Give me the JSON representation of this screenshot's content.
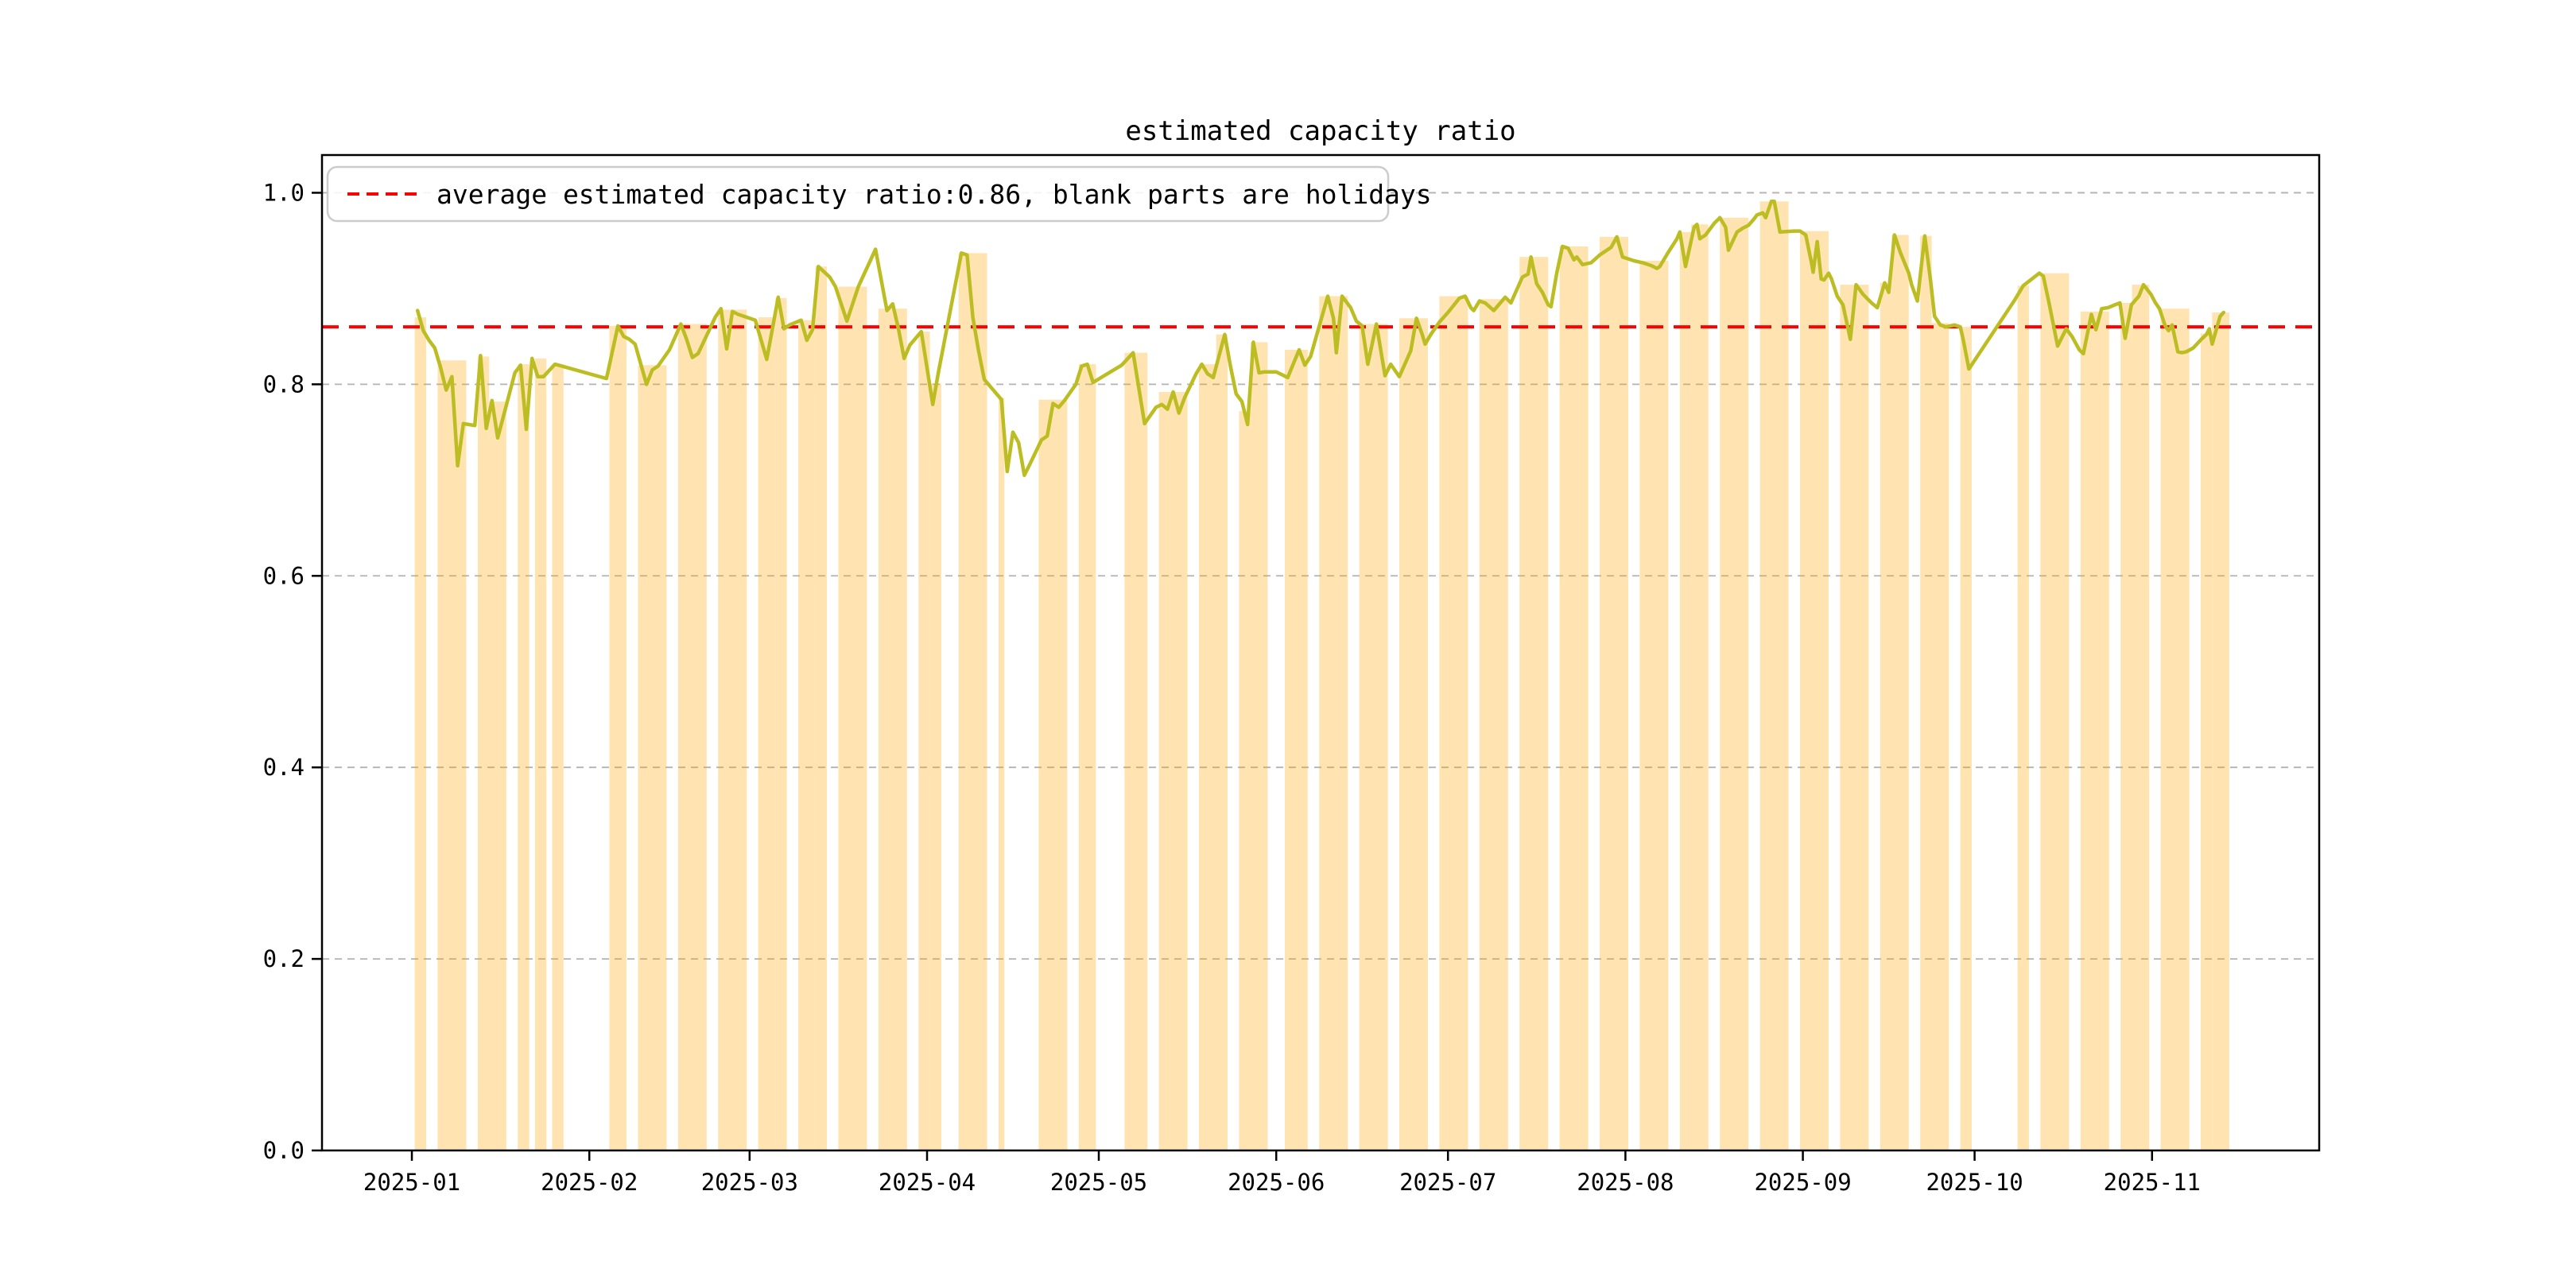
{
  "title": "estimated capacity ratio",
  "legend": {
    "label": "average estimated capacity ratio:0.86, blank parts are holidays"
  },
  "colors": {
    "bar_fill": "#FFA500",
    "bar_opacity": 0.3,
    "line": "#bcbd22",
    "average_line": "#ff0000",
    "grid": "#b3b3b3",
    "axis": "#000000",
    "legend_border": "#cccccc",
    "background": "#ffffff"
  },
  "chart_data": {
    "type": "line",
    "title": "estimated capacity ratio",
    "xlabel": "",
    "ylabel": "",
    "x_unit": "day index, t=1 is 2025-01-01",
    "xlim": [
      -14.7,
      334.2
    ],
    "ylim": [
      0,
      1.0394
    ],
    "grid": "dashed horizontal at each y tick",
    "legend_position": "upper left",
    "average_value": 0.86,
    "y_ticks": [
      {
        "v": 0.0,
        "label": "0.0"
      },
      {
        "v": 0.2,
        "label": "0.2"
      },
      {
        "v": 0.4,
        "label": "0.4"
      },
      {
        "v": 0.6,
        "label": "0.6"
      },
      {
        "v": 0.8,
        "label": "0.8"
      },
      {
        "v": 1.0,
        "label": "1.0"
      }
    ],
    "x_ticks": [
      {
        "t": 1,
        "label": "2025-01"
      },
      {
        "t": 32,
        "label": "2025-02"
      },
      {
        "t": 60,
        "label": "2025-03"
      },
      {
        "t": 91,
        "label": "2025-04"
      },
      {
        "t": 121,
        "label": "2025-05"
      },
      {
        "t": 152,
        "label": "2025-06"
      },
      {
        "t": 182,
        "label": "2025-07"
      },
      {
        "t": 213,
        "label": "2025-08"
      },
      {
        "t": 244,
        "label": "2025-09"
      },
      {
        "t": 274,
        "label": "2025-10"
      },
      {
        "t": 305,
        "label": "2025-11"
      }
    ],
    "line_points": [
      [
        2,
        0.877
      ],
      [
        3,
        0.856
      ],
      [
        4,
        0.846
      ],
      [
        5,
        0.838
      ],
      [
        6,
        0.818
      ],
      [
        7,
        0.794
      ],
      [
        8,
        0.808
      ],
      [
        9,
        0.715
      ],
      [
        10,
        0.759
      ],
      [
        11,
        0.758
      ],
      [
        12,
        0.757
      ],
      [
        13,
        0.83
      ],
      [
        14,
        0.754
      ],
      [
        15,
        0.783
      ],
      [
        16,
        0.744
      ],
      [
        19,
        0.812
      ],
      [
        20,
        0.82
      ],
      [
        21,
        0.753
      ],
      [
        22,
        0.827
      ],
      [
        23,
        0.808
      ],
      [
        24,
        0.808
      ],
      [
        26,
        0.821
      ],
      [
        35,
        0.806
      ],
      [
        37,
        0.861
      ],
      [
        38,
        0.85
      ],
      [
        39,
        0.847
      ],
      [
        40,
        0.842
      ],
      [
        42,
        0.8
      ],
      [
        43,
        0.815
      ],
      [
        44,
        0.819
      ],
      [
        46,
        0.836
      ],
      [
        48,
        0.863
      ],
      [
        49,
        0.847
      ],
      [
        50,
        0.828
      ],
      [
        51,
        0.832
      ],
      [
        54,
        0.87
      ],
      [
        55,
        0.879
      ],
      [
        56,
        0.837
      ],
      [
        57,
        0.876
      ],
      [
        58,
        0.873
      ],
      [
        60,
        0.869
      ],
      [
        61,
        0.867
      ],
      [
        63,
        0.826
      ],
      [
        65,
        0.891
      ],
      [
        66,
        0.858
      ],
      [
        67,
        0.862
      ],
      [
        69,
        0.867
      ],
      [
        70,
        0.846
      ],
      [
        71,
        0.857
      ],
      [
        72,
        0.923
      ],
      [
        74,
        0.912
      ],
      [
        75,
        0.902
      ],
      [
        77,
        0.866
      ],
      [
        79,
        0.902
      ],
      [
        82,
        0.941
      ],
      [
        84,
        0.877
      ],
      [
        85,
        0.884
      ],
      [
        86,
        0.858
      ],
      [
        87,
        0.827
      ],
      [
        88,
        0.841
      ],
      [
        90,
        0.855
      ],
      [
        92,
        0.779
      ],
      [
        93,
        0.813
      ],
      [
        97,
        0.937
      ],
      [
        98,
        0.935
      ],
      [
        99,
        0.87
      ],
      [
        100,
        0.835
      ],
      [
        101,
        0.805
      ],
      [
        104,
        0.784
      ],
      [
        105,
        0.709
      ],
      [
        106,
        0.75
      ],
      [
        107,
        0.739
      ],
      [
        108,
        0.705
      ],
      [
        109,
        0.717
      ],
      [
        111,
        0.742
      ],
      [
        112,
        0.746
      ],
      [
        113,
        0.78
      ],
      [
        114,
        0.776
      ],
      [
        115,
        0.783
      ],
      [
        117,
        0.8
      ],
      [
        118,
        0.819
      ],
      [
        119,
        0.821
      ],
      [
        120,
        0.802
      ],
      [
        125,
        0.82
      ],
      [
        127,
        0.833
      ],
      [
        129,
        0.759
      ],
      [
        131,
        0.776
      ],
      [
        132,
        0.779
      ],
      [
        133,
        0.774
      ],
      [
        134,
        0.792
      ],
      [
        135,
        0.77
      ],
      [
        136,
        0.786
      ],
      [
        138,
        0.811
      ],
      [
        139,
        0.821
      ],
      [
        140,
        0.811
      ],
      [
        141,
        0.807
      ],
      [
        143,
        0.852
      ],
      [
        144,
        0.819
      ],
      [
        145,
        0.79
      ],
      [
        146,
        0.782
      ],
      [
        147,
        0.758
      ],
      [
        148,
        0.844
      ],
      [
        149,
        0.812
      ],
      [
        150,
        0.813
      ],
      [
        152,
        0.813
      ],
      [
        154,
        0.807
      ],
      [
        156,
        0.836
      ],
      [
        157,
        0.82
      ],
      [
        158,
        0.829
      ],
      [
        161,
        0.892
      ],
      [
        162,
        0.869
      ],
      [
        162.5,
        0.833
      ],
      [
        163.5,
        0.892
      ],
      [
        165,
        0.88
      ],
      [
        166,
        0.866
      ],
      [
        167,
        0.861
      ],
      [
        168,
        0.821
      ],
      [
        169.5,
        0.863
      ],
      [
        171,
        0.809
      ],
      [
        172,
        0.821
      ],
      [
        173.5,
        0.808
      ],
      [
        175.5,
        0.835
      ],
      [
        176.5,
        0.869
      ],
      [
        177.5,
        0.852
      ],
      [
        178,
        0.842
      ],
      [
        179,
        0.852
      ],
      [
        180.5,
        0.865
      ],
      [
        182,
        0.875
      ],
      [
        184,
        0.89
      ],
      [
        185,
        0.892
      ],
      [
        186,
        0.88
      ],
      [
        186.5,
        0.877
      ],
      [
        187.5,
        0.887
      ],
      [
        188.5,
        0.885
      ],
      [
        190,
        0.877
      ],
      [
        192,
        0.891
      ],
      [
        193,
        0.885
      ],
      [
        195,
        0.912
      ],
      [
        196,
        0.915
      ],
      [
        196.5,
        0.933
      ],
      [
        197.5,
        0.905
      ],
      [
        198.5,
        0.896
      ],
      [
        199.5,
        0.883
      ],
      [
        200,
        0.881
      ],
      [
        201,
        0.916
      ],
      [
        202,
        0.944
      ],
      [
        203,
        0.942
      ],
      [
        204,
        0.93
      ],
      [
        204.5,
        0.933
      ],
      [
        205.5,
        0.925
      ],
      [
        207,
        0.927
      ],
      [
        208.5,
        0.935
      ],
      [
        210,
        0.941
      ],
      [
        210.5,
        0.943
      ],
      [
        211.5,
        0.954
      ],
      [
        212.5,
        0.933
      ],
      [
        214.5,
        0.929
      ],
      [
        216,
        0.927
      ],
      [
        217.5,
        0.924
      ],
      [
        218.5,
        0.921
      ],
      [
        219,
        0.923
      ],
      [
        220.5,
        0.938
      ],
      [
        222,
        0.952
      ],
      [
        222.5,
        0.959
      ],
      [
        223.5,
        0.923
      ],
      [
        225,
        0.964
      ],
      [
        225.5,
        0.967
      ],
      [
        226,
        0.952
      ],
      [
        227,
        0.956
      ],
      [
        228.5,
        0.968
      ],
      [
        229.5,
        0.974
      ],
      [
        230.5,
        0.964
      ],
      [
        231,
        0.94
      ],
      [
        232.5,
        0.959
      ],
      [
        233.5,
        0.963
      ],
      [
        234.5,
        0.966
      ],
      [
        235.5,
        0.973
      ],
      [
        236,
        0.977
      ],
      [
        237,
        0.979
      ],
      [
        237.5,
        0.974
      ],
      [
        238.5,
        0.991
      ],
      [
        239,
        0.991
      ],
      [
        240,
        0.959
      ],
      [
        242.5,
        0.96
      ],
      [
        243.5,
        0.96
      ],
      [
        244.5,
        0.956
      ],
      [
        245.5,
        0.927
      ],
      [
        245.8,
        0.917
      ],
      [
        246.5,
        0.949
      ],
      [
        247.2,
        0.91
      ],
      [
        247.7,
        0.909
      ],
      [
        248.5,
        0.916
      ],
      [
        249,
        0.91
      ],
      [
        250,
        0.892
      ],
      [
        251,
        0.883
      ],
      [
        252.3,
        0.847
      ],
      [
        253.3,
        0.904
      ],
      [
        254.5,
        0.894
      ],
      [
        255.5,
        0.888
      ],
      [
        256,
        0.885
      ],
      [
        257,
        0.88
      ],
      [
        258.3,
        0.906
      ],
      [
        259,
        0.896
      ],
      [
        260,
        0.956
      ],
      [
        261,
        0.938
      ],
      [
        262.5,
        0.916
      ],
      [
        263,
        0.904
      ],
      [
        264,
        0.887
      ],
      [
        265.3,
        0.955
      ],
      [
        266.3,
        0.909
      ],
      [
        267,
        0.871
      ],
      [
        268,
        0.862
      ],
      [
        269,
        0.86
      ],
      [
        270.5,
        0.862
      ],
      [
        271.5,
        0.86
      ],
      [
        272,
        0.847
      ],
      [
        273,
        0.816
      ],
      [
        281,
        0.888
      ],
      [
        282.5,
        0.903
      ],
      [
        285.3,
        0.916
      ],
      [
        286,
        0.913
      ],
      [
        287,
        0.885
      ],
      [
        288.5,
        0.84
      ],
      [
        289.5,
        0.852
      ],
      [
        290,
        0.858
      ],
      [
        291,
        0.85
      ],
      [
        292.3,
        0.836
      ],
      [
        293,
        0.832
      ],
      [
        294.4,
        0.873
      ],
      [
        295.2,
        0.857
      ],
      [
        296.2,
        0.879
      ],
      [
        297.3,
        0.88
      ],
      [
        298.5,
        0.883
      ],
      [
        299.4,
        0.885
      ],
      [
        300.3,
        0.848
      ],
      [
        301.4,
        0.883
      ],
      [
        302.7,
        0.892
      ],
      [
        303.5,
        0.904
      ],
      [
        304.8,
        0.894
      ],
      [
        305.6,
        0.885
      ],
      [
        306.3,
        0.879
      ],
      [
        307.3,
        0.861
      ],
      [
        307.9,
        0.856
      ],
      [
        308.5,
        0.862
      ],
      [
        309.5,
        0.834
      ],
      [
        310.2,
        0.833
      ],
      [
        311,
        0.834
      ],
      [
        312.2,
        0.838
      ],
      [
        313.6,
        0.847
      ],
      [
        314.5,
        0.852
      ],
      [
        315,
        0.858
      ],
      [
        315.5,
        0.842
      ],
      [
        316.9,
        0.871
      ],
      [
        317.5,
        0.875
      ]
    ],
    "bar_blocks": [
      [
        2,
        3,
        0.87
      ],
      [
        6,
        10,
        0.825
      ],
      [
        13,
        14,
        0.829
      ],
      [
        15,
        17,
        0.782
      ],
      [
        20,
        21,
        0.821
      ],
      [
        23,
        24,
        0.827
      ],
      [
        26,
        27,
        0.821
      ],
      [
        36,
        38,
        0.861
      ],
      [
        41,
        45,
        0.82
      ],
      [
        48,
        52,
        0.863
      ],
      [
        55,
        59,
        0.878
      ],
      [
        62,
        64,
        0.87
      ],
      [
        65,
        66,
        0.89
      ],
      [
        69,
        71,
        0.867
      ],
      [
        72,
        73,
        0.923
      ],
      [
        76,
        80,
        0.902
      ],
      [
        83,
        87,
        0.879
      ],
      [
        90,
        91,
        0.855
      ],
      [
        92,
        93,
        0.801
      ],
      [
        97,
        101,
        0.937
      ],
      [
        104,
        104,
        0.786
      ],
      [
        111,
        115,
        0.784
      ],
      [
        118,
        120,
        0.821
      ],
      [
        126,
        129,
        0.833
      ],
      [
        132,
        136,
        0.792
      ],
      [
        139,
        141,
        0.821
      ],
      [
        142,
        143,
        0.852
      ],
      [
        146,
        147,
        0.772
      ],
      [
        148,
        150,
        0.844
      ],
      [
        154,
        157,
        0.836
      ],
      [
        160,
        164,
        0.892
      ],
      [
        167,
        171,
        0.863
      ],
      [
        174,
        178,
        0.869
      ],
      [
        181,
        185,
        0.892
      ],
      [
        188,
        192,
        0.889
      ],
      [
        195,
        199,
        0.933
      ],
      [
        202,
        206,
        0.944
      ],
      [
        209,
        213,
        0.954
      ],
      [
        216,
        220,
        0.929
      ],
      [
        223,
        224,
        0.959
      ],
      [
        225,
        227,
        0.967
      ],
      [
        230,
        234,
        0.974
      ],
      [
        237,
        241,
        0.991
      ],
      [
        244,
        248,
        0.96
      ],
      [
        251,
        255,
        0.904
      ],
      [
        258,
        259,
        0.906
      ],
      [
        260,
        262,
        0.956
      ],
      [
        265,
        266,
        0.955
      ],
      [
        267,
        269,
        0.864
      ],
      [
        272,
        273,
        0.86
      ],
      [
        282,
        283,
        0.903
      ],
      [
        286,
        290,
        0.916
      ],
      [
        293,
        297,
        0.876
      ],
      [
        300,
        301,
        0.885
      ],
      [
        302,
        304,
        0.904
      ],
      [
        307,
        311,
        0.879
      ],
      [
        314,
        315,
        0.853
      ],
      [
        316,
        318,
        0.875
      ]
    ]
  }
}
